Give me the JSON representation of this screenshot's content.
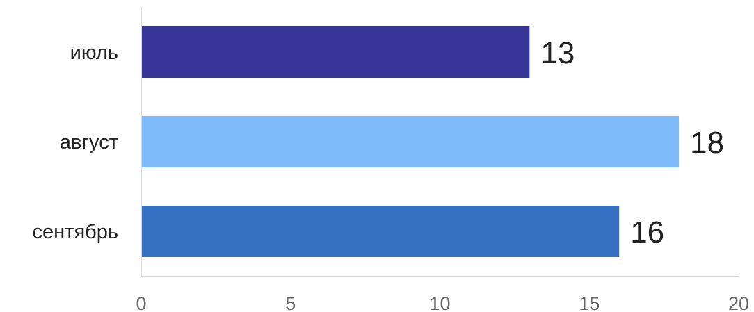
{
  "chart_data": {
    "type": "bar",
    "orientation": "horizontal",
    "categories": [
      "июль",
      "август",
      "сентябрь"
    ],
    "values": [
      13,
      18,
      16
    ],
    "colors": [
      "#373597",
      "#7fbafb",
      "#3570c3"
    ],
    "xlim": [
      0,
      20
    ],
    "xticks": [
      "0",
      "5",
      "10",
      "15",
      "20"
    ],
    "grid": false,
    "legend": "none"
  }
}
